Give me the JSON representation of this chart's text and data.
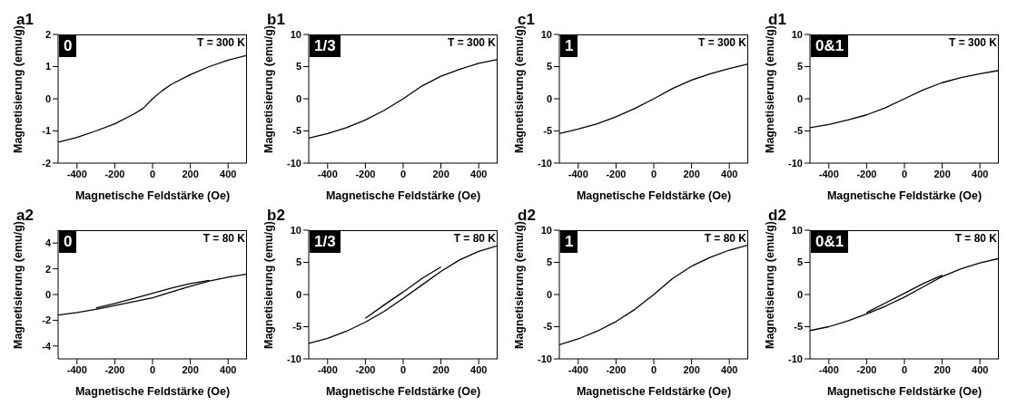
{
  "chart_data": [
    {
      "type": "line",
      "title": "a1",
      "xlabel": "Magnetische Feldstärke (Oe)",
      "ylabel": "Magnetisierung (emu/g)",
      "annotations": [
        "0",
        "T = 300 K"
      ],
      "xlim": [
        -500,
        500
      ],
      "xticks": [
        -400,
        -200,
        0,
        200,
        400
      ],
      "ylim": [
        -2,
        2
      ],
      "yticks": [
        -2,
        -1,
        0,
        1,
        2
      ],
      "series": [
        {
          "color": "#000000",
          "x": [
            -500,
            -400,
            -300,
            -200,
            -100,
            -50,
            0,
            50,
            100,
            200,
            300,
            400,
            500
          ],
          "values": [
            -1.35,
            -1.2,
            -1.0,
            -0.78,
            -0.48,
            -0.3,
            0,
            0.25,
            0.45,
            0.75,
            1.0,
            1.2,
            1.35
          ]
        }
      ]
    },
    {
      "type": "line",
      "title": "b1",
      "xlabel": "Magnetische Feldstärke (Oe)",
      "ylabel": "Magnetisierung (emu/g)",
      "annotations": [
        "1/3",
        "T = 300 K"
      ],
      "xlim": [
        -500,
        500
      ],
      "xticks": [
        -400,
        -200,
        0,
        200,
        400
      ],
      "ylim": [
        -10,
        10
      ],
      "yticks": [
        -10,
        -5,
        0,
        5,
        10
      ],
      "series": [
        {
          "color": "#000000",
          "x": [
            -500,
            -400,
            -300,
            -200,
            -100,
            0,
            100,
            200,
            300,
            400,
            500
          ],
          "values": [
            -6.1,
            -5.4,
            -4.5,
            -3.3,
            -1.8,
            0,
            2.0,
            3.5,
            4.6,
            5.5,
            6.1
          ]
        }
      ]
    },
    {
      "type": "line",
      "title": "c1",
      "xlabel": "Magnetische Feldstärke (Oe)",
      "ylabel": "Magnetisierung (emu/g)",
      "annotations": [
        "1",
        "T = 300 K"
      ],
      "xlim": [
        -500,
        500
      ],
      "xticks": [
        -400,
        -200,
        0,
        200,
        400
      ],
      "ylim": [
        -10,
        10
      ],
      "yticks": [
        -10,
        -5,
        0,
        5,
        10
      ],
      "series": [
        {
          "color": "#000000",
          "x": [
            -500,
            -400,
            -300,
            -200,
            -100,
            0,
            100,
            200,
            300,
            400,
            500
          ],
          "values": [
            -5.4,
            -4.7,
            -3.9,
            -2.8,
            -1.5,
            0,
            1.6,
            2.9,
            3.9,
            4.7,
            5.4
          ]
        }
      ]
    },
    {
      "type": "line",
      "title": "d1",
      "xlabel": "Magnetische Feldstärke (Oe)",
      "ylabel": "Magnetisierung (emu/g)",
      "annotations": [
        "0&1",
        "T = 300 K"
      ],
      "xlim": [
        -500,
        500
      ],
      "xticks": [
        -400,
        -200,
        0,
        200,
        400
      ],
      "ylim": [
        -10,
        10
      ],
      "yticks": [
        -10,
        -5,
        0,
        5,
        10
      ],
      "series": [
        {
          "color": "#000000",
          "x": [
            -500,
            -400,
            -300,
            -200,
            -100,
            0,
            100,
            200,
            300,
            400,
            500
          ],
          "values": [
            -4.5,
            -4.0,
            -3.3,
            -2.5,
            -1.4,
            0,
            1.4,
            2.5,
            3.3,
            3.9,
            4.4
          ]
        }
      ]
    },
    {
      "type": "line",
      "title": "a2",
      "xlabel": "Magnetische Feldstärke (Oe)",
      "ylabel": "Magnetisierung (emu/g)",
      "annotations": [
        "0",
        "T = 80 K"
      ],
      "xlim": [
        -500,
        500
      ],
      "xticks": [
        -400,
        -200,
        0,
        200,
        400
      ],
      "ylim": [
        -5,
        5
      ],
      "yticks": [
        -4,
        -2,
        0,
        2,
        4
      ],
      "series": [
        {
          "color": "#000000",
          "x": [
            -500,
            -400,
            -300,
            -200,
            -100,
            0,
            100,
            200,
            300,
            400,
            500
          ],
          "values": [
            -1.6,
            -1.4,
            -1.15,
            -0.85,
            -0.55,
            -0.25,
            0.2,
            0.65,
            1.05,
            1.35,
            1.6
          ]
        },
        {
          "color": "#000000",
          "x": [
            -300,
            -200,
            -100,
            0,
            100,
            200,
            300
          ],
          "values": [
            -1.05,
            -0.7,
            -0.3,
            0.1,
            0.5,
            0.85,
            1.1
          ]
        }
      ]
    },
    {
      "type": "line",
      "title": "b2",
      "xlabel": "Magnetische Feldstärke (Oe)",
      "ylabel": "Magnetisierung (emu/g)",
      "annotations": [
        "1/3",
        "T = 80 K"
      ],
      "xlim": [
        -500,
        500
      ],
      "xticks": [
        -400,
        -200,
        0,
        200,
        400
      ],
      "ylim": [
        -10,
        10
      ],
      "yticks": [
        -10,
        -5,
        0,
        5,
        10
      ],
      "series": [
        {
          "color": "#000000",
          "x": [
            -500,
            -400,
            -300,
            -200,
            -100,
            0,
            100,
            200,
            300,
            400,
            500
          ],
          "values": [
            -7.6,
            -6.8,
            -5.7,
            -4.3,
            -2.6,
            -0.6,
            1.5,
            3.6,
            5.4,
            6.7,
            7.6
          ]
        },
        {
          "color": "#000000",
          "x": [
            -200,
            -100,
            0,
            100,
            200
          ],
          "values": [
            -3.7,
            -1.6,
            0.4,
            2.5,
            4.3
          ]
        }
      ]
    },
    {
      "type": "line",
      "title": "d2",
      "xlabel": "Magnetische Feldstärke (Oe)",
      "ylabel": "Magnetisierung (emu/g)",
      "annotations": [
        "1",
        "T = 80 K"
      ],
      "xlim": [
        -500,
        500
      ],
      "xticks": [
        -400,
        -200,
        0,
        200,
        400
      ],
      "ylim": [
        -10,
        10
      ],
      "yticks": [
        -10,
        -5,
        0,
        5,
        10
      ],
      "series": [
        {
          "color": "#000000",
          "x": [
            -500,
            -400,
            -300,
            -200,
            -100,
            0,
            100,
            200,
            300,
            400,
            500
          ],
          "values": [
            -7.8,
            -6.9,
            -5.7,
            -4.2,
            -2.3,
            0,
            2.5,
            4.4,
            5.8,
            6.9,
            7.7
          ]
        }
      ]
    },
    {
      "type": "line",
      "title": "d2",
      "xlabel": "Magnetische Feldstärke (Oe)",
      "ylabel": "Magnetisierung (emu/g)",
      "annotations": [
        "0&1",
        "T = 80 K"
      ],
      "xlim": [
        -500,
        500
      ],
      "xticks": [
        -400,
        -200,
        0,
        200,
        400
      ],
      "ylim": [
        -10,
        10
      ],
      "yticks": [
        -10,
        -5,
        0,
        5,
        10
      ],
      "series": [
        {
          "color": "#000000",
          "x": [
            -500,
            -400,
            -300,
            -200,
            -100,
            0,
            100,
            200,
            300,
            400,
            500
          ],
          "values": [
            -5.6,
            -5.0,
            -4.1,
            -3.0,
            -1.8,
            -0.4,
            1.2,
            2.8,
            4.0,
            4.9,
            5.6
          ]
        },
        {
          "color": "#000000",
          "x": [
            -200,
            -100,
            0,
            100,
            200
          ],
          "values": [
            -2.8,
            -1.3,
            0.2,
            1.7,
            3.0
          ]
        }
      ]
    }
  ]
}
